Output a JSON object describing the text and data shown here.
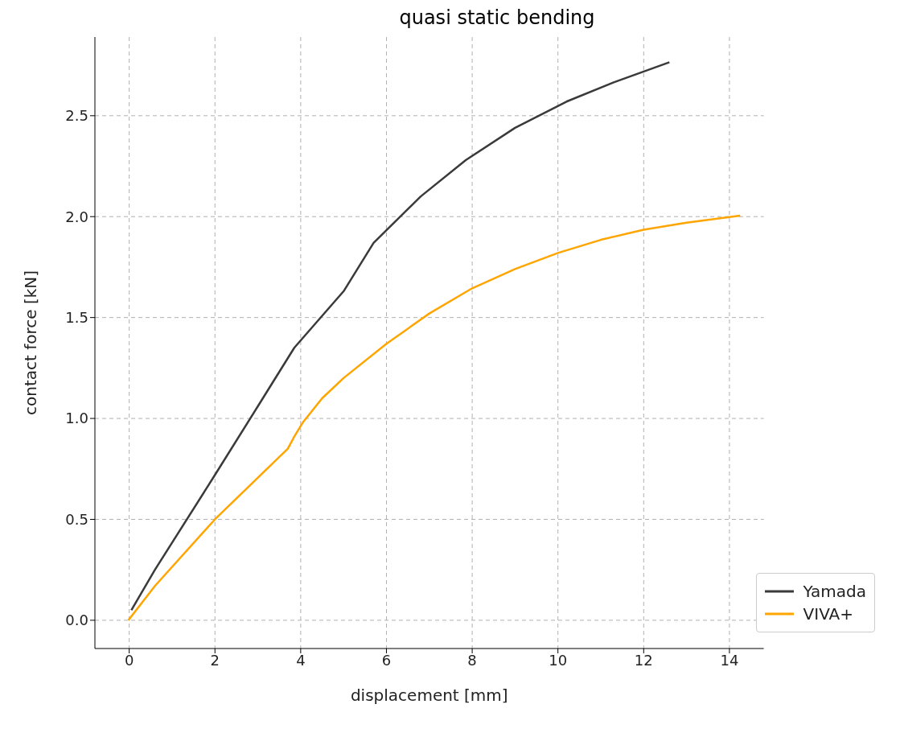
{
  "chart_data": {
    "type": "line",
    "title": "quasi static bending",
    "xlabel": "displacement [mm]",
    "ylabel": "contact force [kN]",
    "xlim": [
      -0.8,
      14.8
    ],
    "ylim": [
      -0.14,
      2.89
    ],
    "xticks": [
      0,
      2,
      4,
      6,
      8,
      10,
      12,
      14
    ],
    "yticks": [
      {
        "value": 0,
        "label": "0.0"
      },
      0.5,
      {
        "value": 1,
        "label": "1.0"
      },
      1.5,
      {
        "value": 2,
        "label": "2.0"
      },
      2.5
    ],
    "grid": true,
    "legend": "bottom right",
    "line_style": "solid",
    "marker": "none",
    "series": [
      {
        "name": "Yamada",
        "color": "#3a3a3a",
        "x": [
          0.05,
          0.6,
          2,
          3,
          3.85,
          5,
          5.7,
          6.8,
          7.85,
          9,
          10.2,
          11.3,
          12.6
        ],
        "values": [
          0.05,
          0.25,
          0.72,
          1.06,
          1.35,
          1.63,
          1.87,
          2.1,
          2.28,
          2.44,
          2.57,
          2.665,
          2.765
        ]
      },
      {
        "name": "VIVA+",
        "color": "#ffa500",
        "x": [
          -0.02,
          0.6,
          2,
          3.7,
          3.85,
          4.05,
          4.5,
          5,
          6,
          7,
          8,
          9,
          10,
          11,
          12,
          13,
          14.25
        ],
        "values": [
          0,
          0.17,
          0.5,
          0.85,
          0.91,
          0.98,
          1.1,
          1.2,
          1.37,
          1.52,
          1.645,
          1.74,
          1.82,
          1.885,
          1.935,
          1.97,
          2.005
        ]
      }
    ]
  }
}
